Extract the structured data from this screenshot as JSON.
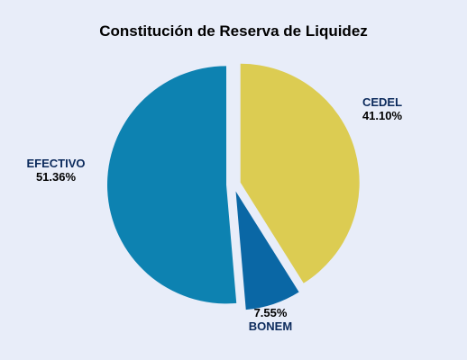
{
  "chart_data": {
    "type": "pie",
    "title": "Constitución de Reserva de Liquidez",
    "slices": [
      {
        "name": "CEDEL",
        "value": 41.1,
        "label": "41.10%",
        "color": "#dccc52"
      },
      {
        "name": "BONEM",
        "value": 7.55,
        "label": "7.55%",
        "color": "#0a67a5"
      },
      {
        "name": "EFECTIVO",
        "value": 51.36,
        "label": "51.36%",
        "color": "#0d82b1"
      }
    ],
    "start_angle_deg": 0,
    "direction": "clockwise",
    "exploded": true,
    "label_placement": "outside",
    "background": "#e8edf9"
  }
}
